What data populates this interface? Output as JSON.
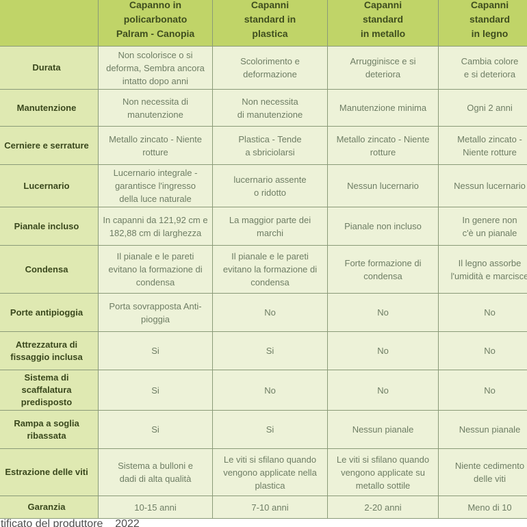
{
  "chart_data": {
    "type": "table",
    "columns": [
      "",
      "Capanno in\npolicarbonato\nPalram - Canopia",
      "Capanni\nstandard in\nplastica",
      "Capanni\nstandard\nin metallo",
      "Capanni\nstandard\nin legno"
    ],
    "rows": [
      {
        "label": "Durata",
        "values": [
          "Non scolorisce o si\ndeforma, Sembra ancora\nintatto dopo anni",
          "Scolorimento e\ndeformazione",
          "Arrugginisce e si\ndeteriora",
          "Cambia colore\ne si deteriora"
        ]
      },
      {
        "label": "Manutenzione",
        "values": [
          "Non necessita di\nmanutenzione",
          "Non necessita\ndi manutenzione",
          "Manutenzione minima",
          "Ogni 2 anni"
        ]
      },
      {
        "label": "Cerniere e serrature",
        "values": [
          "Metallo zincato - Niente\nrotture",
          "Plastica - Tende\na sbriciolarsi",
          "Metallo zincato - Niente\nrotture",
          "Metallo zincato -\nNiente rotture"
        ]
      },
      {
        "label": "Lucernario",
        "values": [
          "Lucernario integrale -\ngarantisce l'ingresso\ndella luce naturale",
          "lucernario assente\no ridotto",
          "Nessun lucernario",
          "Nessun lucernario"
        ]
      },
      {
        "label": "Pianale incluso",
        "values": [
          "In capanni da 121,92 cm e\n182,88 cm di larghezza",
          "La maggior parte dei\nmarchi",
          "Pianale non incluso",
          "In genere non\nc'è un pianale"
        ]
      },
      {
        "label": "Condensa",
        "values": [
          "Il pianale e le pareti\nevitano la formazione di\ncondensa",
          "Il pianale e le pareti\nevitano la formazione di\ncondensa",
          "Forte formazione di\ncondensa",
          "Il legno assorbe\nl'umidità e marcisce"
        ]
      },
      {
        "label": "Porte antipioggia",
        "values": [
          "Porta sovrapposta Anti-\npioggia",
          "No",
          "No",
          "No"
        ]
      },
      {
        "label": "Attrezzatura di\nfissaggio inclusa",
        "values": [
          "Si",
          "Si",
          "No",
          "No"
        ]
      },
      {
        "label": "Sistema di scaffalatura\npredisposto",
        "values": [
          "Si",
          "No",
          "No",
          "No"
        ]
      },
      {
        "label": "Rampa a soglia\nribassata",
        "values": [
          "Si",
          "Si",
          "Nessun pianale",
          "Nessun pianale"
        ]
      },
      {
        "label": "Estrazione delle viti",
        "values": [
          "Sistema a bulloni e\ndadi di alta qualità",
          "Le viti si sfilano quando\nvengono applicate nella\nplastica",
          "Le viti si sfilano quando\nvengono applicate su\nmetallo sottile",
          "Niente cedimento\ndelle viti"
        ]
      },
      {
        "label": "Garanzia",
        "values": [
          "10-15 anni",
          "7-10 anni",
          "2-20 anni",
          "Meno di 10"
        ]
      }
    ],
    "footer_fragment": "tificato del produttore    2022"
  },
  "style": {
    "header_bg": "#c0d468",
    "label_bg": "#dfe9b2",
    "cell_bg": "#edf2d8",
    "border": "#8a9a78",
    "header_text": "#3e4d1e",
    "label_text": "#3a481d",
    "cell_text": "#6e7d64"
  }
}
